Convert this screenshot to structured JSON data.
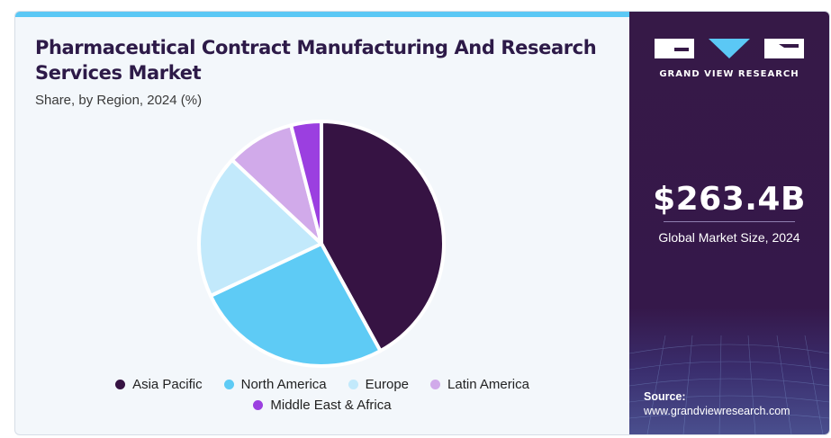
{
  "chart": {
    "title": "Pharmaceutical Contract Manufacturing And Research Services Market",
    "subtitle": "Share, by Region, 2024 (%)"
  },
  "chart_data": {
    "type": "pie",
    "title": "Pharmaceutical Contract Manufacturing And Research Services Market",
    "subtitle": "Share, by Region, 2024 (%)",
    "categories": [
      "Asia Pacific",
      "North America",
      "Europe",
      "Latin America",
      "Middle East & Africa"
    ],
    "values": [
      42,
      26,
      19,
      9,
      4
    ],
    "colors": [
      "#361343",
      "#5ecbf5",
      "#c2e9fb",
      "#d1aaea",
      "#9b3fe0"
    ],
    "start": "12 o'clock",
    "direction": "clockwise",
    "legend_position": "bottom"
  },
  "legend": {
    "row1": [
      "Asia Pacific",
      "North America",
      "Europe",
      "Latin America"
    ],
    "row2": [
      "Middle East & Africa"
    ]
  },
  "sidebar": {
    "brand": "GRAND VIEW RESEARCH",
    "market_value": "$263.4B",
    "market_label": "Global Market Size, 2024",
    "source_label": "Source:",
    "source_url": "www.grandviewresearch.com"
  },
  "icons": {
    "logo": "gvr-logo-icon",
    "legend_marker": "circle-dot-icon"
  }
}
